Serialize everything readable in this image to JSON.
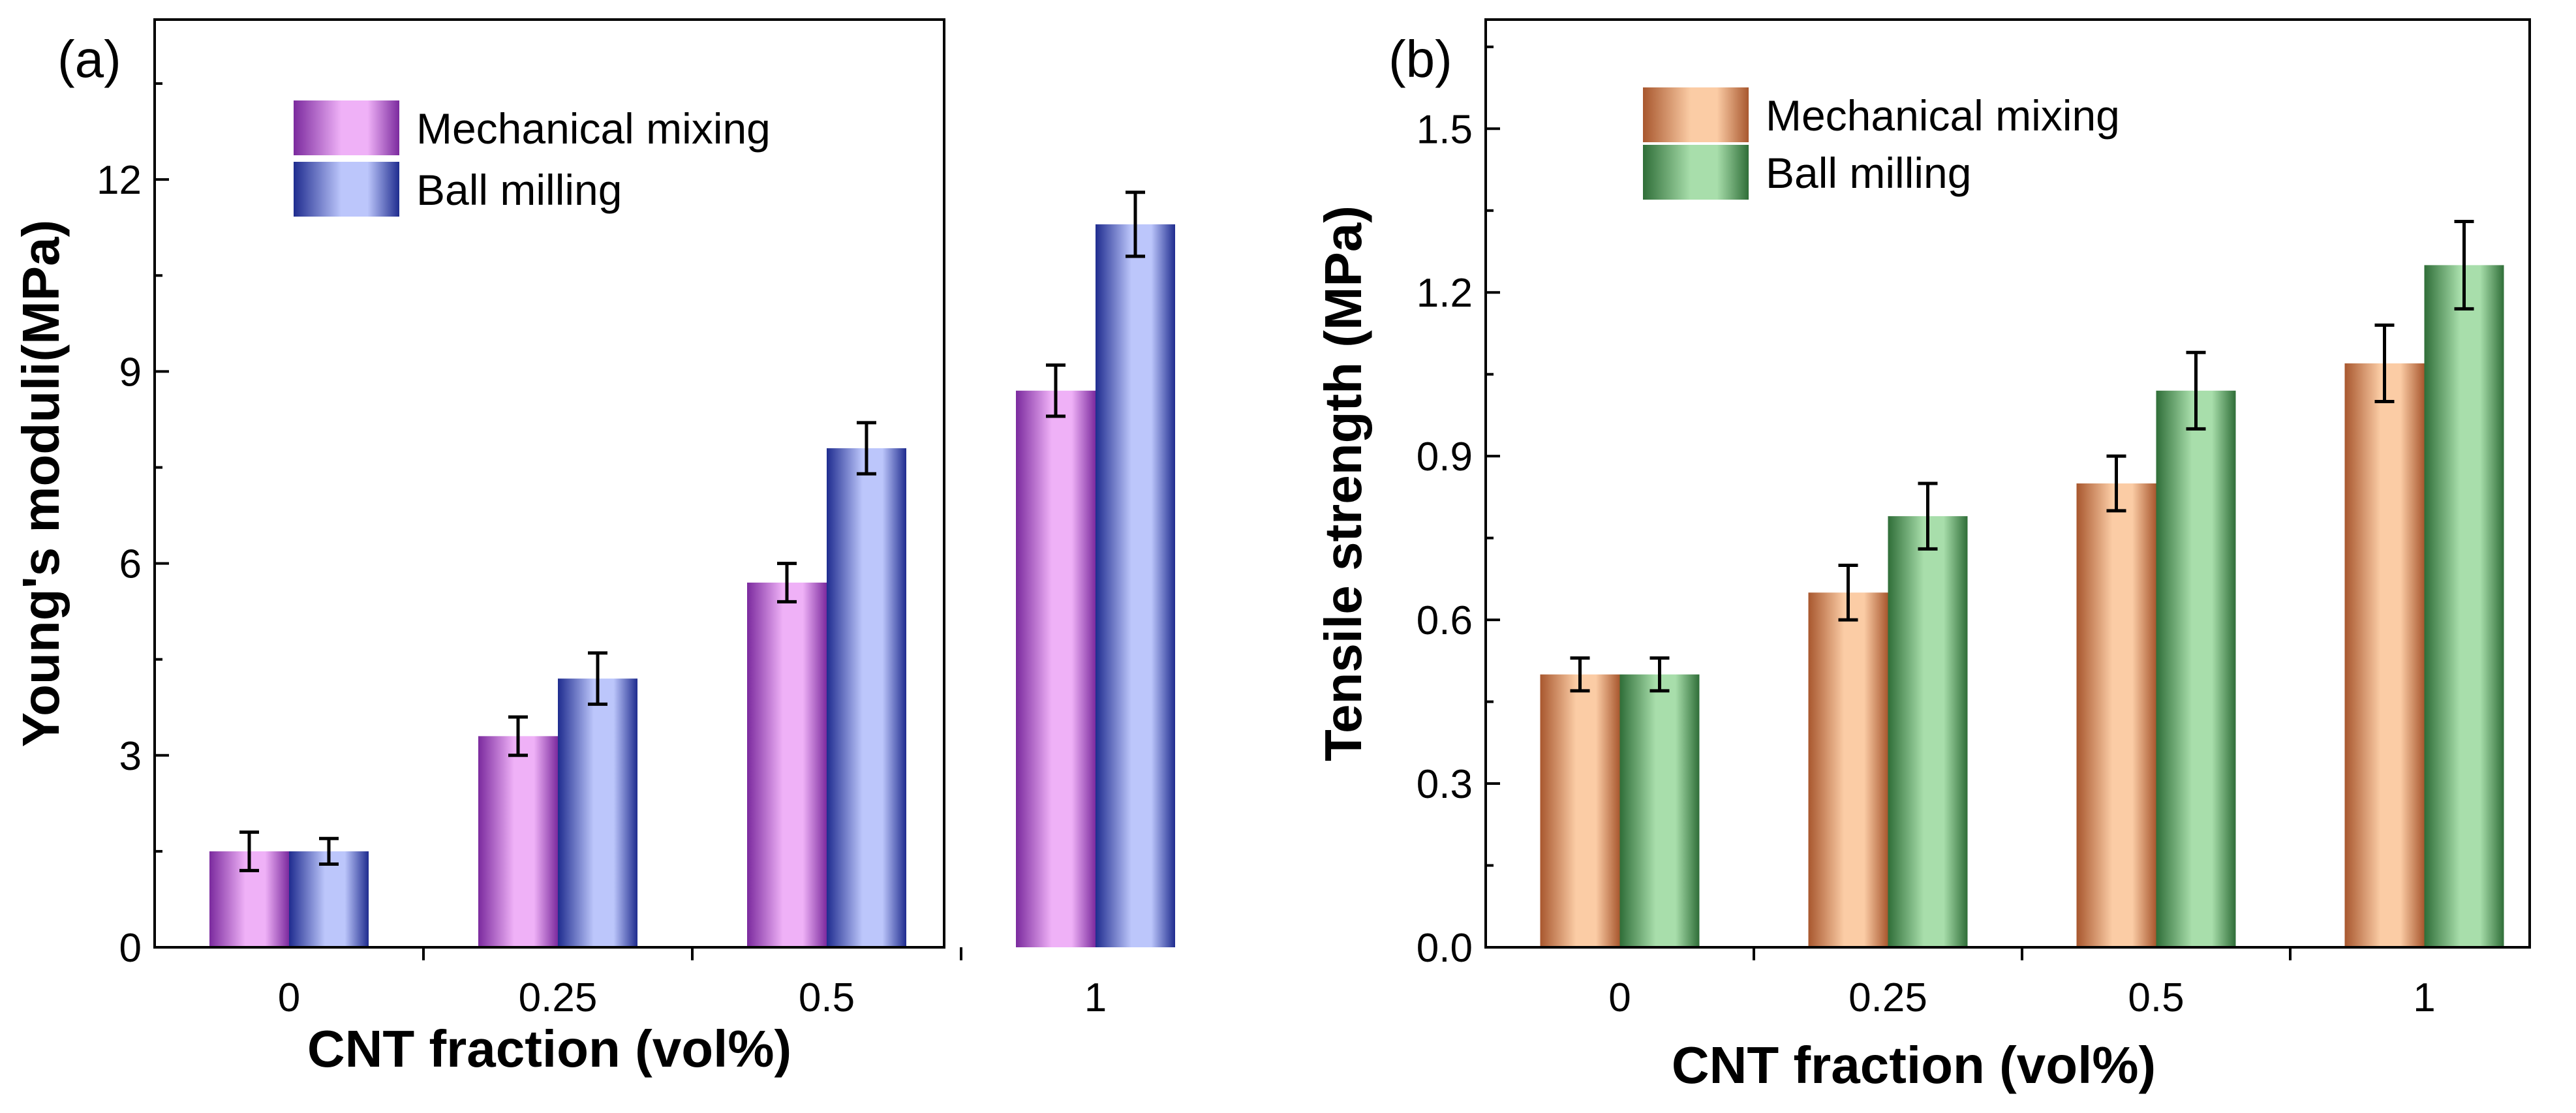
{
  "chart_data": [
    {
      "type": "bar",
      "panel_label": "(a)",
      "xlabel": "CNT fraction (vol%)",
      "ylabel": "Young's moduli(MPa)",
      "categories": [
        "0",
        "0.25",
        "0.5",
        "1"
      ],
      "ylim": [
        0,
        14.5
      ],
      "yticks": [
        0,
        3,
        6,
        9,
        12
      ],
      "ytick_labels": [
        "0",
        "3",
        "6",
        "9",
        "12"
      ],
      "legend_position": "top-left",
      "series": [
        {
          "name": "Mechanical mixing",
          "values": [
            1.5,
            3.3,
            5.7,
            8.7
          ],
          "errors": [
            0.3,
            0.3,
            0.3,
            0.4
          ],
          "color_dark": "#7b2a9e",
          "color_light": "#efb1f7"
        },
        {
          "name": "Ball milling",
          "values": [
            1.5,
            4.2,
            7.8,
            11.3
          ],
          "errors": [
            0.2,
            0.4,
            0.4,
            0.5
          ],
          "color_dark": "#1f2c8f",
          "color_light": "#bcc6fb"
        }
      ]
    },
    {
      "type": "bar",
      "panel_label": "(b)",
      "xlabel": "CNT fraction (vol%)",
      "ylabel": "Tensile strength (MPa)",
      "categories": [
        "0",
        "0.25",
        "0.5",
        "1"
      ],
      "ylim": [
        0,
        1.7
      ],
      "yticks": [
        0,
        0.3,
        0.6,
        0.9,
        1.2,
        1.5
      ],
      "ytick_labels": [
        "0.0",
        "0.3",
        "0.6",
        "0.9",
        "1.2",
        "1.5"
      ],
      "legend_position": "top-left",
      "series": [
        {
          "name": "Mechanical mixing",
          "values": [
            0.5,
            0.65,
            0.85,
            1.07
          ],
          "errors": [
            0.03,
            0.05,
            0.05,
            0.07
          ],
          "color_dark": "#a8572e",
          "color_light": "#fbcca5"
        },
        {
          "name": "Ball milling",
          "values": [
            0.5,
            0.79,
            1.02,
            1.25
          ],
          "errors": [
            0.03,
            0.06,
            0.07,
            0.08
          ],
          "color_dark": "#2f6e38",
          "color_light": "#a8deab"
        }
      ]
    }
  ]
}
